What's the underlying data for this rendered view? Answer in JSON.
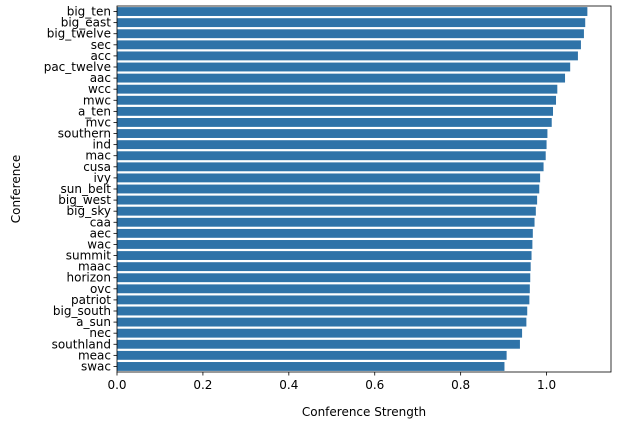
{
  "chart_data": {
    "type": "bar",
    "orientation": "horizontal",
    "xlabel": "Conference Strength",
    "ylabel": "Conference",
    "xlim": [
      0,
      1.15
    ],
    "xticks": [
      0.0,
      0.2,
      0.4,
      0.6,
      0.8,
      1.0
    ],
    "xtick_labels": [
      "0.0",
      "0.2",
      "0.4",
      "0.6",
      "0.8",
      "1.0"
    ],
    "grid": false,
    "bar_color": "#2f73a8",
    "categories": [
      "big_ten",
      "big_east",
      "big_twelve",
      "sec",
      "acc",
      "pac_twelve",
      "aac",
      "wcc",
      "mwc",
      "a_ten",
      "mvc",
      "southern",
      "ind",
      "mac",
      "cusa",
      "ivy",
      "sun_belt",
      "big_west",
      "big_sky",
      "caa",
      "aec",
      "wac",
      "summit",
      "maac",
      "horizon",
      "ovc",
      "patriot",
      "big_south",
      "a_sun",
      "nec",
      "southland",
      "meac",
      "swac"
    ],
    "values": [
      1.095,
      1.09,
      1.087,
      1.08,
      1.073,
      1.055,
      1.043,
      1.025,
      1.022,
      1.015,
      1.012,
      1.002,
      1.0,
      0.998,
      0.993,
      0.985,
      0.983,
      0.978,
      0.975,
      0.972,
      0.968,
      0.967,
      0.965,
      0.963,
      0.962,
      0.961,
      0.96,
      0.955,
      0.953,
      0.943,
      0.938,
      0.907,
      0.902
    ]
  }
}
